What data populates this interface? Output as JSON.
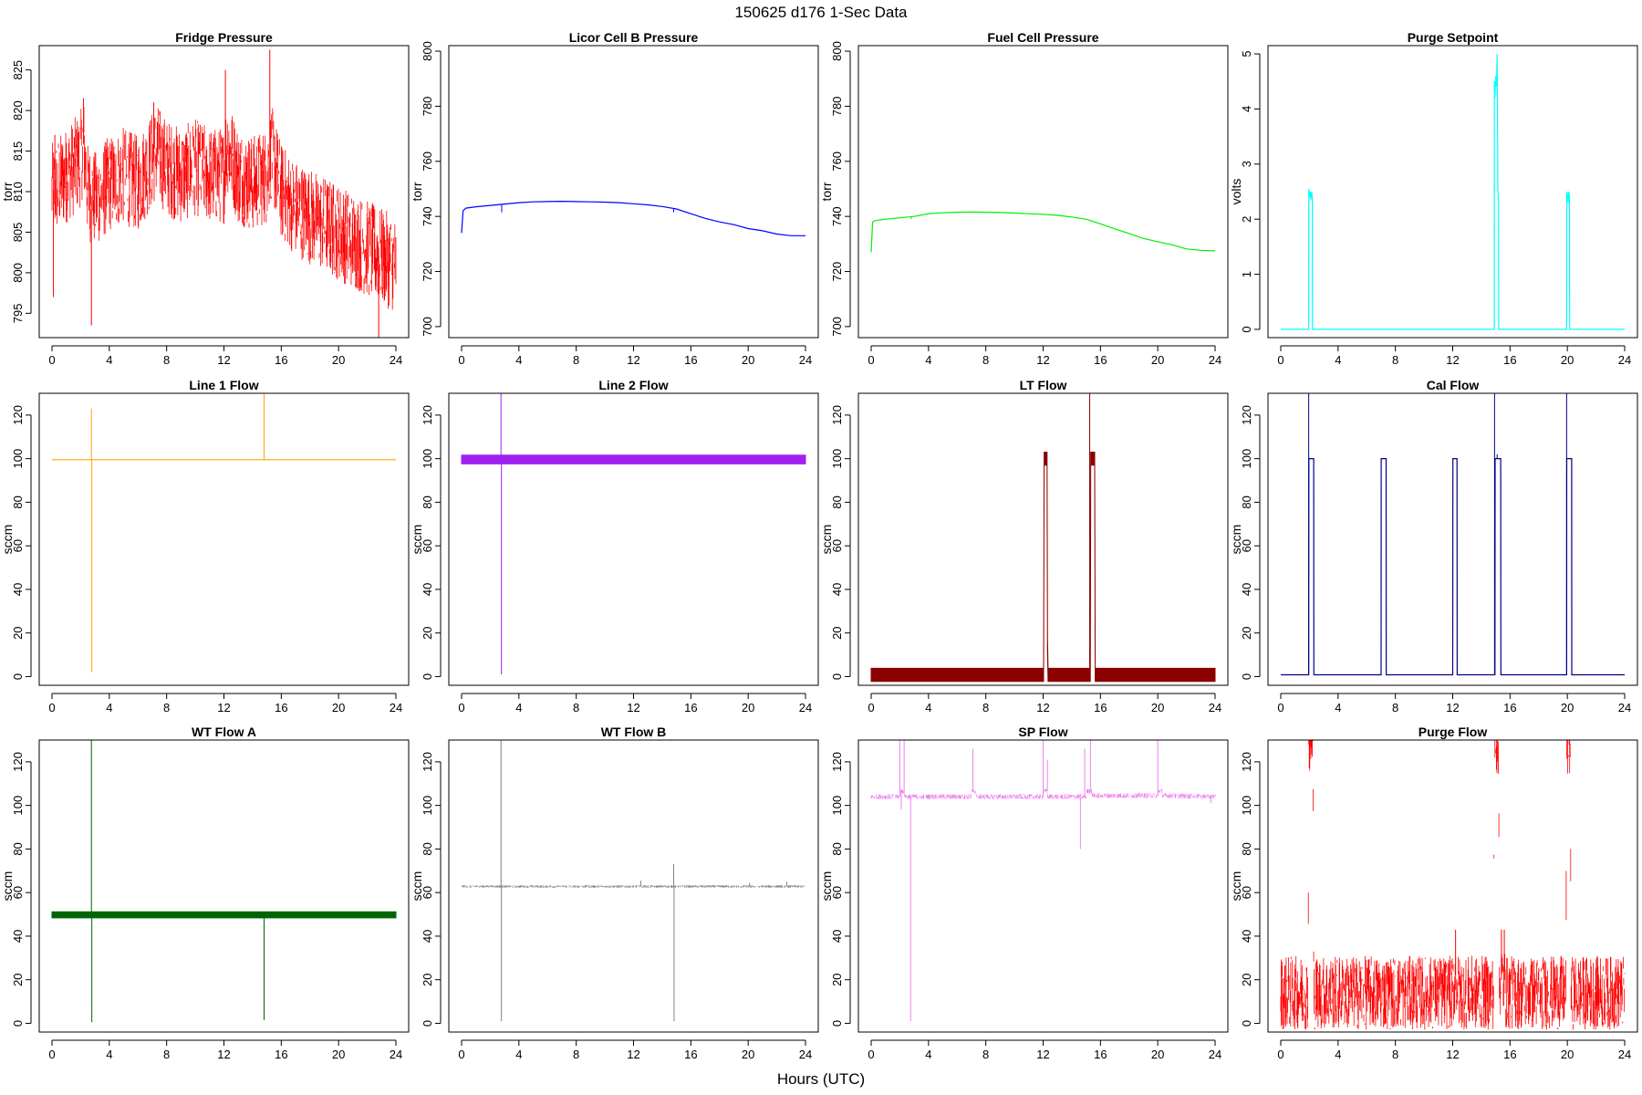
{
  "figure": {
    "title": "150625   d176   1-Sec Data",
    "xlabel": "Hours (UTC)"
  },
  "chart_data": [
    {
      "type": "line",
      "title": "Fridge Pressure",
      "ylabel": "torr",
      "color": "#ff0000",
      "style": "noisy",
      "xlim": [
        0,
        24
      ],
      "ylim": [
        792,
        828
      ],
      "x_ticks": [
        "0",
        "4",
        "8",
        "12",
        "16",
        "20",
        "24"
      ],
      "y_ticks": [
        "795",
        "800",
        "805",
        "810",
        "815",
        "820",
        "825"
      ],
      "x": [
        0,
        0.5,
        1,
        1.5,
        2,
        2.2,
        2.5,
        3,
        4,
        5,
        6,
        7,
        7.3,
        8,
        9,
        10,
        11,
        12,
        12.2,
        13,
        14,
        15,
        15.3,
        16,
        17,
        18,
        19,
        20,
        21,
        22,
        23,
        24
      ],
      "y": [
        810,
        811,
        812,
        813,
        814,
        816,
        810,
        809,
        811,
        812,
        811,
        814,
        815,
        813,
        812,
        813,
        812,
        812,
        816,
        812,
        811,
        812,
        815,
        810,
        808,
        807,
        806,
        805,
        804,
        803,
        802,
        801
      ],
      "spread": 6,
      "spikes": [
        [
          0.1,
          797
        ],
        [
          0.2,
          817
        ],
        [
          1,
          816
        ],
        [
          2.2,
          821.5
        ],
        [
          2.75,
          793.5
        ],
        [
          7.1,
          821
        ],
        [
          12.1,
          825
        ],
        [
          15.2,
          827.5
        ],
        [
          15.1,
          810
        ],
        [
          20.2,
          802
        ],
        [
          22.8,
          792
        ]
      ]
    },
    {
      "type": "line",
      "title": "Licor Cell B Pressure",
      "ylabel": "torr",
      "color": "#0000ff",
      "style": "smooth",
      "xlim": [
        0,
        24
      ],
      "ylim": [
        696,
        802
      ],
      "x_ticks": [
        "0",
        "4",
        "8",
        "12",
        "16",
        "20",
        "24"
      ],
      "y_ticks": [
        "700",
        "720",
        "740",
        "760",
        "780",
        "800"
      ],
      "x": [
        0,
        0.1,
        0.3,
        1,
        2,
        3,
        4,
        5,
        6,
        7,
        8,
        9,
        10,
        11,
        12,
        13,
        14,
        15,
        16,
        17,
        18,
        19,
        20,
        21,
        22,
        23,
        24
      ],
      "y": [
        734,
        742,
        743,
        743.5,
        744,
        744.5,
        745,
        745.3,
        745.4,
        745.5,
        745.4,
        745.3,
        745.2,
        745,
        744.6,
        744.2,
        743.6,
        742.7,
        741,
        739.3,
        738,
        737,
        735.6,
        734.8,
        733.6,
        733,
        733
      ],
      "spikes": [
        [
          2.8,
          741.5
        ],
        [
          14.8,
          741.5
        ]
      ]
    },
    {
      "type": "line",
      "title": "Fuel Cell Pressure",
      "ylabel": "torr",
      "color": "#00ee00",
      "style": "smooth",
      "xlim": [
        0,
        24
      ],
      "ylim": [
        696,
        802
      ],
      "x_ticks": [
        "0",
        "4",
        "8",
        "12",
        "16",
        "20",
        "24"
      ],
      "y_ticks": [
        "700",
        "720",
        "740",
        "760",
        "780",
        "800"
      ],
      "x": [
        0,
        0.1,
        0.3,
        1,
        2,
        3,
        4,
        5,
        6,
        7,
        8,
        9,
        10,
        11,
        12,
        13,
        14,
        15,
        16,
        17,
        18,
        19,
        20,
        21,
        22,
        23,
        24
      ],
      "y": [
        727,
        738,
        738.5,
        739,
        739.5,
        740,
        741,
        741.3,
        741.5,
        741.6,
        741.5,
        741.4,
        741.2,
        741,
        740.8,
        740.4,
        739.8,
        739,
        737.3,
        735.5,
        733.8,
        732,
        730.8,
        729.7,
        728.2,
        727.7,
        727.5
      ],
      "spikes": [
        [
          2.8,
          739
        ]
      ]
    },
    {
      "type": "line",
      "title": "Purge Setpoint",
      "ylabel": "volts",
      "color": "#00ffff",
      "style": "smooth",
      "xlim": [
        0,
        24
      ],
      "ylim": [
        -0.15,
        5.15
      ],
      "x_ticks": [
        "0",
        "4",
        "8",
        "12",
        "16",
        "20",
        "24"
      ],
      "y_ticks": [
        "0",
        "1",
        "2",
        "3",
        "4",
        "5"
      ],
      "x": [
        0,
        1.95,
        1.96,
        2.0,
        2.05,
        2.1,
        2.15,
        2.2,
        2.21,
        14.9,
        14.91,
        14.95,
        15.0,
        15.05,
        15.1,
        15.15,
        15.2,
        15.21,
        19.95,
        19.96,
        20.0,
        20.05,
        20.1,
        20.15,
        20.16,
        24
      ],
      "y": [
        0,
        0,
        2.55,
        2.4,
        2.5,
        2.35,
        2.5,
        2.4,
        0,
        0,
        4.5,
        4.2,
        4.6,
        4.4,
        5.0,
        2.5,
        2.3,
        0,
        0,
        2.5,
        2.45,
        2.3,
        2.5,
        2.4,
        0,
        0
      ]
    },
    {
      "type": "line",
      "title": "Line 1 Flow",
      "ylabel": "sccm",
      "color": "#ffa500",
      "style": "smooth",
      "xlim": [
        0,
        24
      ],
      "ylim": [
        -4,
        130
      ],
      "x_ticks": [
        "0",
        "4",
        "8",
        "12",
        "16",
        "20",
        "24"
      ],
      "y_ticks": [
        "0",
        "20",
        "40",
        "60",
        "80",
        "100",
        "120"
      ],
      "x": [
        0,
        24
      ],
      "y": [
        99.5,
        99.5
      ],
      "spikes": [
        [
          2.75,
          123
        ],
        [
          2.78,
          2
        ],
        [
          14.8,
          130
        ]
      ]
    },
    {
      "type": "line",
      "title": "Line 2 Flow",
      "ylabel": "sccm",
      "color": "#a020f0",
      "style": "band",
      "xlim": [
        0,
        24
      ],
      "ylim": [
        -4,
        130
      ],
      "x_ticks": [
        "0",
        "4",
        "8",
        "12",
        "16",
        "20",
        "24"
      ],
      "y_ticks": [
        "0",
        "20",
        "40",
        "60",
        "80",
        "100",
        "120"
      ],
      "x": [
        0,
        24
      ],
      "y": [
        99.6,
        99.6
      ],
      "spread": 2,
      "spikes": [
        [
          2.75,
          130
        ],
        [
          2.78,
          1
        ]
      ]
    },
    {
      "type": "line",
      "title": "LT Flow",
      "ylabel": "sccm",
      "color": "#8b0000",
      "style": "band",
      "xlim": [
        0,
        24
      ],
      "ylim": [
        -4,
        130
      ],
      "x_ticks": [
        "0",
        "4",
        "8",
        "12",
        "16",
        "20",
        "24"
      ],
      "y_ticks": [
        "0",
        "20",
        "40",
        "60",
        "80",
        "100",
        "120"
      ],
      "x": [
        0,
        12.05,
        12.06,
        12.3,
        12.31,
        15.3,
        15.31,
        15.6,
        15.61,
        24
      ],
      "y": [
        0.8,
        0.8,
        100,
        100,
        0.8,
        0.8,
        100,
        100,
        0.8,
        0.8
      ],
      "spread": 3,
      "spikes": [
        [
          15.25,
          130
        ]
      ]
    },
    {
      "type": "line",
      "title": "Cal Flow",
      "ylabel": "sccm",
      "color": "#00008b",
      "style": "smooth",
      "xlim": [
        0,
        24
      ],
      "ylim": [
        -4,
        130
      ],
      "x_ticks": [
        "0",
        "4",
        "8",
        "12",
        "16",
        "20",
        "24"
      ],
      "y_ticks": [
        "0",
        "20",
        "40",
        "60",
        "80",
        "100",
        "120"
      ],
      "x": [
        0,
        1.95,
        1.96,
        2.3,
        2.31,
        7.0,
        7.01,
        7.35,
        7.36,
        12.0,
        12.01,
        12.3,
        12.31,
        14.95,
        14.96,
        15.35,
        15.36,
        19.95,
        19.96,
        20.3,
        20.31,
        24
      ],
      "y": [
        0.8,
        0.8,
        100,
        100,
        0.8,
        0.8,
        100,
        100,
        0.8,
        0.8,
        100,
        100,
        0.8,
        0.8,
        100,
        100,
        0.8,
        0.8,
        100,
        100,
        0.8,
        0.8
      ],
      "spikes": [
        [
          1.95,
          130
        ],
        [
          14.92,
          130
        ],
        [
          15.1,
          102
        ],
        [
          19.95,
          130
        ]
      ]
    },
    {
      "type": "line",
      "title": "WT Flow A",
      "ylabel": "sccm",
      "color": "#006400",
      "style": "band",
      "xlim": [
        0,
        24
      ],
      "ylim": [
        -4,
        130
      ],
      "x_ticks": [
        "0",
        "4",
        "8",
        "12",
        "16",
        "20",
        "24"
      ],
      "y_ticks": [
        "0",
        "20",
        "40",
        "60",
        "80",
        "100",
        "120"
      ],
      "x": [
        0,
        24
      ],
      "y": [
        49.8,
        49.8
      ],
      "spread": 1.4,
      "spikes": [
        [
          2.75,
          130
        ],
        [
          2.78,
          0.5
        ],
        [
          14.8,
          1.5
        ]
      ]
    },
    {
      "type": "line",
      "title": "WT Flow B",
      "ylabel": "sccm",
      "color": "#808080",
      "style": "noisy",
      "xlim": [
        0,
        24
      ],
      "ylim": [
        -4,
        130
      ],
      "x_ticks": [
        "0",
        "4",
        "8",
        "12",
        "16",
        "20",
        "24"
      ],
      "y_ticks": [
        "0",
        "20",
        "40",
        "60",
        "80",
        "100",
        "120"
      ],
      "x": [
        0,
        24
      ],
      "y": [
        62.8,
        62.8
      ],
      "spread": 0.6,
      "spikes": [
        [
          2.75,
          130
        ],
        [
          2.78,
          1
        ],
        [
          14.8,
          73
        ],
        [
          14.83,
          1
        ],
        [
          12.5,
          65.5
        ],
        [
          20.1,
          64.5
        ],
        [
          22.7,
          65
        ]
      ]
    },
    {
      "type": "line",
      "title": "SP Flow",
      "ylabel": "sccm",
      "color": "#ee82ee",
      "style": "noisy",
      "xlim": [
        0,
        24
      ],
      "ylim": [
        -4,
        130
      ],
      "x_ticks": [
        "0",
        "4",
        "8",
        "12",
        "16",
        "20",
        "24"
      ],
      "y_ticks": [
        "0",
        "20",
        "40",
        "60",
        "80",
        "100",
        "120"
      ],
      "x": [
        0,
        2.0,
        2.01,
        2.3,
        2.31,
        7.0,
        7.01,
        7.3,
        7.31,
        12.0,
        12.01,
        12.3,
        12.31,
        15.0,
        15.01,
        15.4,
        15.41,
        20.0,
        20.01,
        20.3,
        20.31,
        24
      ],
      "y": [
        104,
        104,
        106.5,
        106.5,
        104,
        104,
        106.5,
        106.5,
        104,
        104,
        106.5,
        106.5,
        104,
        104,
        106.5,
        106.5,
        104.5,
        104.5,
        106.5,
        106.5,
        104.5,
        104
      ],
      "spread": 1.2,
      "spikes": [
        [
          2.0,
          130
        ],
        [
          2.3,
          130
        ],
        [
          2.1,
          98
        ],
        [
          2.75,
          1
        ],
        [
          7.1,
          126
        ],
        [
          12.0,
          130
        ],
        [
          12.3,
          121
        ],
        [
          14.6,
          80
        ],
        [
          14.9,
          126
        ],
        [
          15.3,
          130
        ],
        [
          20.0,
          130
        ],
        [
          23.7,
          101
        ]
      ]
    },
    {
      "type": "line",
      "title": "Purge Flow",
      "ylabel": "sccm",
      "color": "#ff0000",
      "style": "noisy",
      "xlim": [
        0,
        24
      ],
      "ylim": [
        -4,
        130
      ],
      "x_ticks": [
        "0",
        "4",
        "8",
        "12",
        "16",
        "20",
        "24"
      ],
      "y_ticks": [
        "0",
        "20",
        "40",
        "60",
        "80",
        "100",
        "120"
      ],
      "x": [
        0,
        1.9,
        1.95,
        2.25,
        2.3,
        12.0,
        12.2,
        12.4,
        14.85,
        14.9,
        15.2,
        15.25,
        15.6,
        15.7,
        19.9,
        19.95,
        20.2,
        20.25,
        24
      ],
      "y": [
        14,
        14,
        130,
        130,
        14,
        14,
        22,
        14,
        14,
        130,
        130,
        20,
        20,
        14,
        14,
        130,
        130,
        14,
        14
      ],
      "spread": 17,
      "spikes": [
        [
          12.2,
          43
        ],
        [
          15.4,
          43
        ],
        [
          15.6,
          43
        ]
      ]
    }
  ]
}
